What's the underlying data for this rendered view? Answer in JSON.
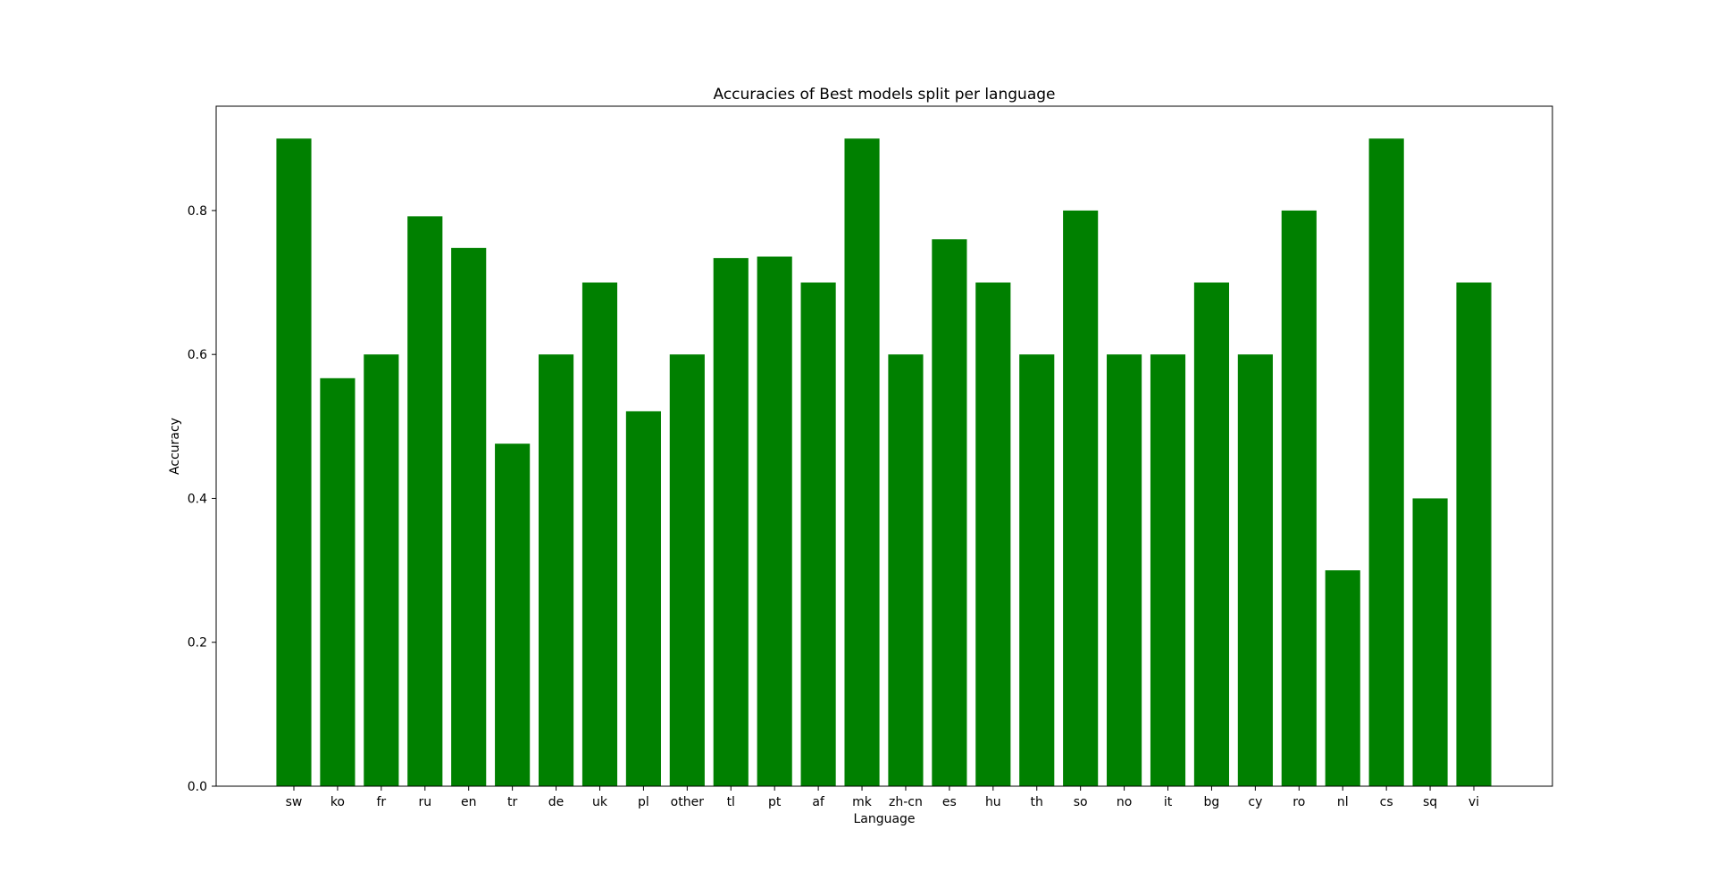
{
  "chart_data": {
    "type": "bar",
    "title": "Accuracies of Best models split per language",
    "xlabel": "Language",
    "ylabel": "Accuracy",
    "categories": [
      "sw",
      "ko",
      "fr",
      "ru",
      "en",
      "tr",
      "de",
      "uk",
      "pl",
      "other",
      "tl",
      "pt",
      "af",
      "mk",
      "zh-cn",
      "es",
      "hu",
      "th",
      "so",
      "no",
      "it",
      "bg",
      "cy",
      "ro",
      "nl",
      "cs",
      "sq",
      "vi"
    ],
    "values": [
      0.9,
      0.567,
      0.6,
      0.792,
      0.748,
      0.476,
      0.6,
      0.7,
      0.521,
      0.6,
      0.734,
      0.736,
      0.7,
      0.9,
      0.6,
      0.76,
      0.7,
      0.6,
      0.8,
      0.6,
      0.6,
      0.7,
      0.6,
      0.8,
      0.3,
      0.9,
      0.4,
      0.7
    ],
    "ylim": [
      0,
      0.945
    ],
    "yticks": [
      0.0,
      0.2,
      0.4,
      0.6,
      0.8
    ],
    "ytick_labels": [
      "0.0",
      "0.2",
      "0.4",
      "0.6",
      "0.8"
    ],
    "bar_color": "#008000",
    "grid": false,
    "legend": "none"
  }
}
